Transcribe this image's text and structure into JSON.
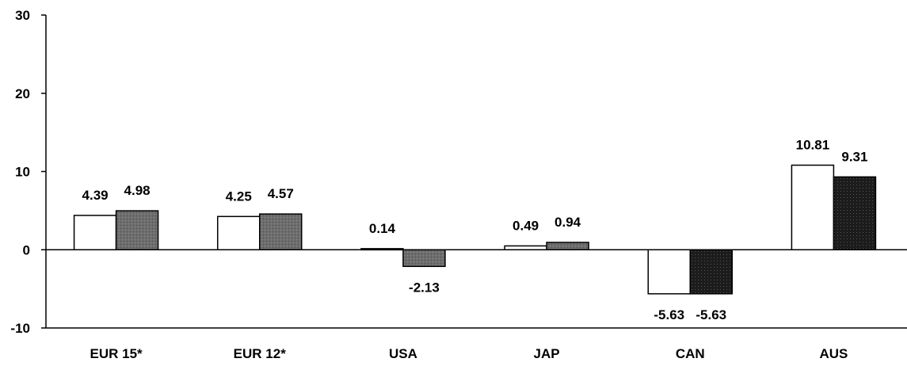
{
  "chart_data": {
    "type": "bar",
    "categories": [
      "EUR 15*",
      "EUR 12*",
      "USA",
      "JAP",
      "CAN",
      "AUS"
    ],
    "series": [
      {
        "values": [
          4.39,
          4.25,
          0.14,
          0.49,
          -5.63,
          10.81
        ],
        "color": "#ffffff"
      },
      {
        "values": [
          4.98,
          4.57,
          -2.13,
          0.94,
          -5.63,
          9.31
        ],
        "color": "#6e6e6e"
      }
    ],
    "data_labels": [
      [
        "4.39",
        "4.25",
        "0.14",
        "0.49",
        "-5.63",
        "10.81"
      ],
      [
        "4.98",
        "4.57",
        "-2.13",
        "0.94",
        "-5.63",
        "9.31"
      ]
    ],
    "yticks": [
      "-10",
      "0",
      "10",
      "20",
      "30"
    ],
    "ylim": [
      -10,
      30
    ],
    "title": "",
    "xlabel": "",
    "ylabel": "",
    "grid": false,
    "legend": "none"
  }
}
